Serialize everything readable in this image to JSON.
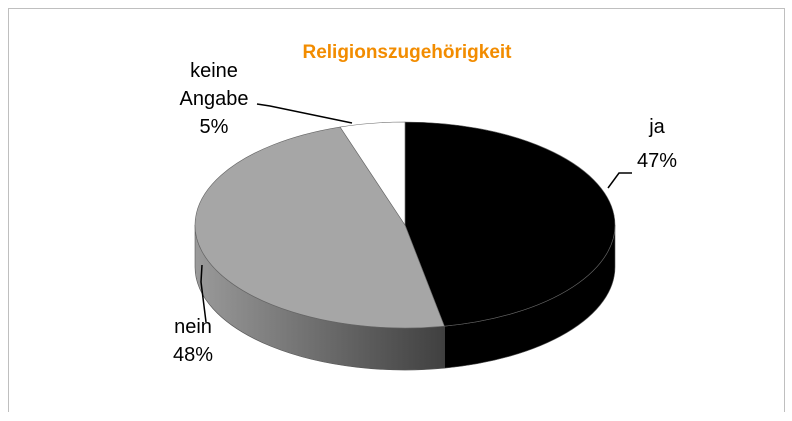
{
  "chart_data": {
    "type": "pie",
    "title": "Religionszugehörigkeit",
    "categories": [
      "ja",
      "nein",
      "keine Angabe"
    ],
    "values": [
      47,
      48,
      5
    ],
    "value_labels": [
      "47%",
      "48%",
      "5%"
    ],
    "colors": [
      "#000000",
      "#a6a6a6",
      "#ffffff"
    ],
    "side_colors": [
      "#000000",
      "#6f6f6f",
      "#e6e6e6"
    ]
  }
}
